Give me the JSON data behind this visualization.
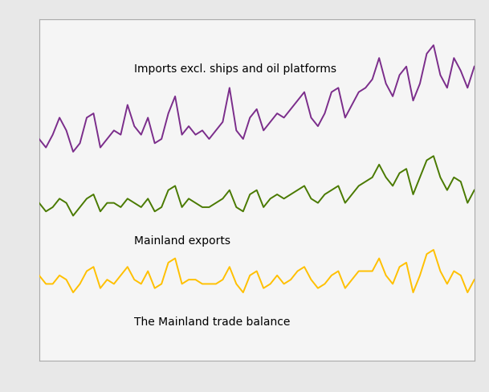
{
  "imports_y": [
    52,
    50,
    53,
    57,
    54,
    49,
    51,
    57,
    58,
    50,
    52,
    54,
    53,
    60,
    55,
    53,
    57,
    51,
    52,
    58,
    62,
    53,
    55,
    53,
    54,
    52,
    54,
    56,
    64,
    54,
    52,
    57,
    59,
    54,
    56,
    58,
    57,
    59,
    61,
    63,
    57,
    55,
    58,
    63,
    64,
    57,
    60,
    63,
    64,
    66,
    71,
    65,
    62,
    67,
    69,
    61,
    65,
    72,
    74,
    67,
    64,
    71,
    68,
    64,
    69
  ],
  "exports_y": [
    37,
    35,
    36,
    38,
    37,
    34,
    36,
    38,
    39,
    35,
    37,
    37,
    36,
    38,
    37,
    36,
    38,
    35,
    36,
    40,
    41,
    36,
    38,
    37,
    36,
    36,
    37,
    38,
    40,
    36,
    35,
    39,
    40,
    36,
    38,
    39,
    38,
    39,
    40,
    41,
    38,
    37,
    39,
    40,
    41,
    37,
    39,
    41,
    42,
    43,
    46,
    43,
    41,
    44,
    45,
    39,
    43,
    47,
    48,
    43,
    40,
    43,
    42,
    37,
    40
  ],
  "balance_y": [
    20,
    18,
    18,
    20,
    19,
    16,
    18,
    21,
    22,
    17,
    19,
    18,
    20,
    22,
    19,
    18,
    21,
    17,
    18,
    23,
    24,
    18,
    19,
    19,
    18,
    18,
    18,
    19,
    22,
    18,
    16,
    20,
    21,
    17,
    18,
    20,
    18,
    19,
    21,
    22,
    19,
    17,
    18,
    20,
    21,
    17,
    19,
    21,
    21,
    21,
    24,
    20,
    18,
    22,
    23,
    16,
    20,
    25,
    26,
    21,
    18,
    21,
    20,
    16,
    19
  ],
  "imports_label": "Imports excl. ships and oil platforms",
  "exports_label": "Mainland exports",
  "balance_label": "The Mainland trade balance",
  "imports_color": "#7B2D8B",
  "exports_color": "#4a7a00",
  "balance_color": "#FFC000",
  "outer_bg": "#e8e8e8",
  "plot_bg": "#f5f5f5",
  "grid_color": "#ffffff",
  "n_points": 65,
  "ylim": [
    0,
    80
  ],
  "xlim": [
    0,
    64
  ],
  "label_fontsize": 10,
  "linewidth": 1.4
}
